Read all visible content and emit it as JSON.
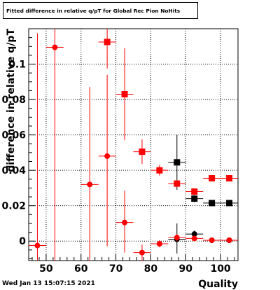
{
  "title": "Fitted difference in relative q/pT for Global Rec Pion NoHits",
  "timestamp": "Wed Jan 13 15:07:15 2021",
  "chart_data": {
    "type": "scatter",
    "title": "Fitted difference in relative q/pT for Global Rec Pion NoHits",
    "xlabel": "Quality",
    "ylabel": "difference in relative q/pT",
    "xlim": [
      45,
      105
    ],
    "ylim": [
      -0.011,
      0.12
    ],
    "x_ticks": [
      50,
      60,
      70,
      80,
      90,
      100
    ],
    "y_ticks": [
      0,
      0.02,
      0.04,
      0.06,
      0.08,
      0.1
    ],
    "x_tick_labels": [
      "50",
      "60",
      "70",
      "80",
      "90",
      "100"
    ],
    "y_tick_labels": [
      "0",
      "0.02",
      "0.04",
      "0.06",
      "0.08",
      "0.1"
    ],
    "grid": true,
    "series": [
      {
        "marker": "square",
        "color": "#000000",
        "points": [
          {
            "x": 87.5,
            "y": 0.0445,
            "xerr": 2.5,
            "yerr_low": 0.0155,
            "yerr_high": 0.0155
          },
          {
            "x": 92.5,
            "y": 0.024,
            "xerr": 2.5,
            "yerr_low": 0.002,
            "yerr_high": 0.002
          },
          {
            "x": 97.5,
            "y": 0.0215,
            "xerr": 2.5,
            "yerr_low": 0.001,
            "yerr_high": 0.001
          },
          {
            "x": 102.5,
            "y": 0.0215,
            "xerr": 2.5,
            "yerr_low": 0.001,
            "yerr_high": 0.001
          }
        ]
      },
      {
        "marker": "circle",
        "color": "#000000",
        "points": [
          {
            "x": 87.5,
            "y": 0.001,
            "xerr": 2.5,
            "yerr_low": 0.008,
            "yerr_high": 0.009
          },
          {
            "x": 92.5,
            "y": 0.004,
            "xerr": 2.5,
            "yerr_low": 0.002,
            "yerr_high": 0.002
          },
          {
            "x": 97.5,
            "y": 0.0005,
            "xerr": 2.5,
            "yerr_low": 0.001,
            "yerr_high": 0.001
          },
          {
            "x": 102.5,
            "y": 0.0005,
            "xerr": 2.5,
            "yerr_low": 0.001,
            "yerr_high": 0.001
          }
        ]
      },
      {
        "marker": "square",
        "color": "#ff0000",
        "points": [
          {
            "x": 67.5,
            "y": 0.1125,
            "xerr": 2.5,
            "yerr_low": 0.015,
            "yerr_high": 0.02
          },
          {
            "x": 72.5,
            "y": 0.083,
            "xerr": 2.5,
            "yerr_low": 0.026,
            "yerr_high": 0.026
          },
          {
            "x": 77.5,
            "y": 0.0505,
            "xerr": 2.5,
            "yerr_low": 0.007,
            "yerr_high": 0.007
          },
          {
            "x": 82.5,
            "y": 0.04,
            "xerr": 2.5,
            "yerr_low": 0.003,
            "yerr_high": 0.003
          },
          {
            "x": 87.5,
            "y": 0.0325,
            "xerr": 2.5,
            "yerr_low": 0.002,
            "yerr_high": 0.002
          },
          {
            "x": 92.5,
            "y": 0.028,
            "xerr": 2.5,
            "yerr_low": 0.001,
            "yerr_high": 0.001
          },
          {
            "x": 97.5,
            "y": 0.0355,
            "xerr": 2.5,
            "yerr_low": 0.001,
            "yerr_high": 0.001
          },
          {
            "x": 102.5,
            "y": 0.0355,
            "xerr": 2.5,
            "yerr_low": 0.001,
            "yerr_high": 0.001
          }
        ]
      },
      {
        "marker": "circle",
        "color": "#ff0000",
        "points": [
          {
            "x": 47.5,
            "y": -0.0025,
            "xerr": 2.5,
            "yerr_low": 0.03,
            "yerr_high": 0.12
          },
          {
            "x": 52.5,
            "y": 0.1095,
            "xerr": 2.5,
            "yerr_low": 0.13,
            "yerr_high": 0.02
          },
          {
            "x": 62.5,
            "y": 0.032,
            "xerr": 2.5,
            "yerr_low": 0.05,
            "yerr_high": 0.055
          },
          {
            "x": 67.5,
            "y": 0.048,
            "xerr": 2.5,
            "yerr_low": 0.051,
            "yerr_high": 0.046
          },
          {
            "x": 72.5,
            "y": 0.0105,
            "xerr": 2.5,
            "yerr_low": 0.017,
            "yerr_high": 0.018
          },
          {
            "x": 77.5,
            "y": -0.0065,
            "xerr": 2.5,
            "yerr_low": 0.0045,
            "yerr_high": 0.0045
          },
          {
            "x": 82.5,
            "y": -0.0015,
            "xerr": 2.5,
            "yerr_low": 0.002,
            "yerr_high": 0.002
          },
          {
            "x": 87.5,
            "y": 0.002,
            "xerr": 2.5,
            "yerr_low": 0.002,
            "yerr_high": 0.002
          },
          {
            "x": 92.5,
            "y": 0.0015,
            "xerr": 2.5,
            "yerr_low": 0.001,
            "yerr_high": 0.001
          },
          {
            "x": 97.5,
            "y": 0.0005,
            "xerr": 2.5,
            "yerr_low": 0.001,
            "yerr_high": 0.001
          },
          {
            "x": 102.5,
            "y": 0.0005,
            "xerr": 2.5,
            "yerr_low": 0.001,
            "yerr_high": 0.001
          }
        ]
      }
    ]
  }
}
